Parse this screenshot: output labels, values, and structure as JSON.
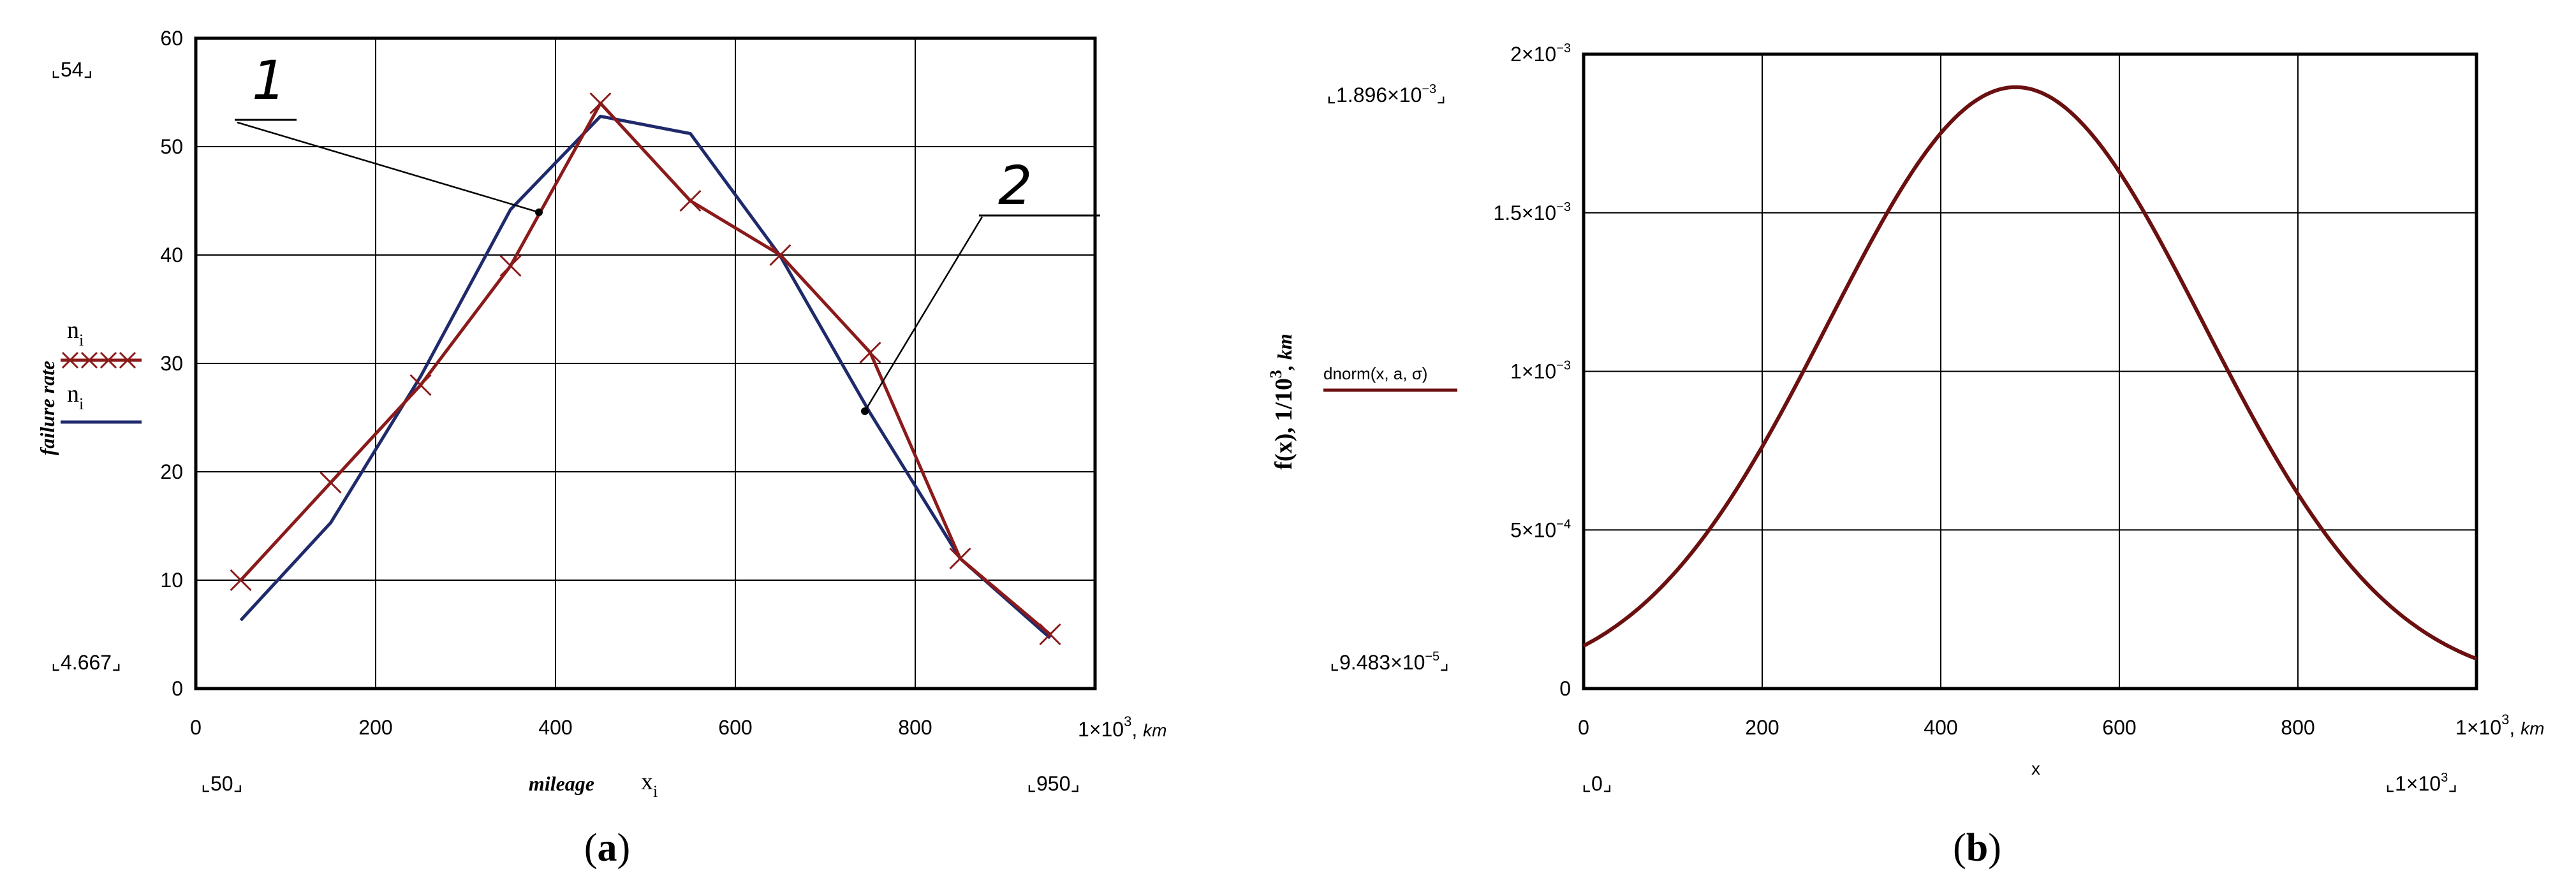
{
  "chart_data": [
    {
      "panel": "a",
      "type": "line",
      "caption_open": "(",
      "caption_letter": "a",
      "caption_close": ")",
      "ylabel": "failure rate",
      "xlabel": "mileage",
      "xvar": "x",
      "xvar_sub": "i",
      "xlim": [
        0,
        1000
      ],
      "ylim": [
        0,
        60
      ],
      "xticks": [
        "0",
        "200",
        "400",
        "600",
        "800"
      ],
      "x_end_tick": "1×10",
      "x_end_exp": "3",
      "x_unit": "km",
      "yticks": [
        "0",
        "10",
        "20",
        "30",
        "40",
        "50",
        "60"
      ],
      "ymax_bracket": "54",
      "ymin_bracket": "4.667",
      "xmin_bracket": "50",
      "xmax_bracket": "950",
      "legend": [
        {
          "label": "n",
          "sub": "i",
          "style": "crossed line",
          "color": "#8b1a1a"
        },
        {
          "label": "n",
          "sub": "i",
          "style": "solid line",
          "color": "#1f2a6b"
        }
      ],
      "annotation_1": "1",
      "annotation_2": "2",
      "series": [
        {
          "color": "#8b1a1a",
          "marker": "x",
          "x": [
            50,
            150,
            250,
            350,
            450,
            550,
            650,
            750,
            850,
            950
          ],
          "y": [
            10,
            19,
            28,
            39,
            54,
            45,
            40,
            31,
            12,
            5
          ]
        },
        {
          "color": "#1f2a6b",
          "marker": "none",
          "x": [
            50,
            150,
            250,
            350,
            450,
            550,
            650,
            750,
            850,
            950
          ],
          "y": [
            6.3,
            15.3,
            28.8,
            44.2,
            52.8,
            51.2,
            39.9,
            25.4,
            12,
            4.667
          ]
        }
      ],
      "grid": true
    },
    {
      "panel": "b",
      "type": "line",
      "caption_open": "(",
      "caption_letter": "b",
      "caption_close": ")",
      "ylabel_main": "f(x), 1/10",
      "ylabel_exp": "3",
      "ylabel_unit": ", km",
      "xlabel": "x",
      "xlim": [
        0,
        1000
      ],
      "ylim": [
        0,
        0.002
      ],
      "xticks": [
        "0",
        "200",
        "400",
        "600",
        "800"
      ],
      "x_end_tick": "1×10",
      "x_end_exp": "3",
      "x_unit": "km",
      "yticks": [
        {
          "value": 0,
          "mant": "0",
          "exp": ""
        },
        {
          "value": 0.0005,
          "mant": "5×10",
          "exp": "−4"
        },
        {
          "value": 0.001,
          "mant": "1×10",
          "exp": "−3"
        },
        {
          "value": 0.0015,
          "mant": "1.5×10",
          "exp": "−3"
        },
        {
          "value": 0.002,
          "mant": "2×10",
          "exp": "−3"
        }
      ],
      "ymax_bracket": "1.896×10",
      "ymax_bracket_exp": "−3",
      "ymin_bracket": "9.483×10",
      "ymin_bracket_exp": "−5",
      "xmin_bracket": "0",
      "xmax_bracket": "1×10",
      "xmax_bracket_exp": "3",
      "legend": [
        {
          "label": "dnorm(x, a, σ)",
          "color": "#6b1010"
        }
      ],
      "series": [
        {
          "name": "dnorm(x, a, σ)",
          "color": "#6b1010",
          "distribution": "normal",
          "mean": 484,
          "sd": 210.4,
          "x_range": [
            0,
            1000
          ]
        }
      ],
      "grid": true
    }
  ]
}
